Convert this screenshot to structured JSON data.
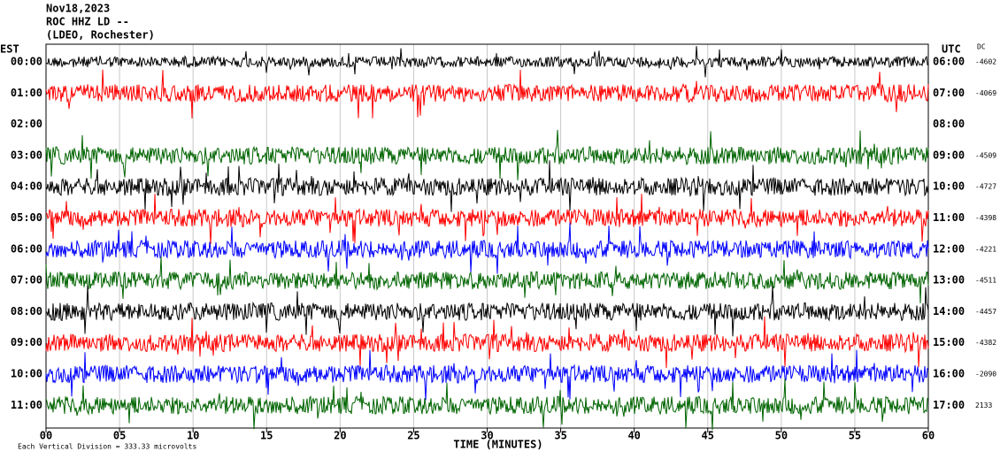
{
  "chart_data": {
    "type": "helicorder",
    "title_lines": [
      "Nov18,2023",
      "ROC HHZ LD --",
      "(LDEO, Rochester)"
    ],
    "left_axis_label": "EST",
    "right_axis_label": "UTC",
    "dc_label": "DC",
    "x_label": "TIME (MINUTES)",
    "footer": "Each Vertical Division = 333.33 microvolts",
    "xlim": [
      0,
      60
    ],
    "xticks": [
      {
        "value": 0,
        "label": "00"
      },
      {
        "value": 5,
        "label": "05"
      },
      {
        "value": 10,
        "label": "10"
      },
      {
        "value": 15,
        "label": "15"
      },
      {
        "value": 20,
        "label": "20"
      },
      {
        "value": 25,
        "label": "25"
      },
      {
        "value": 30,
        "label": "30"
      },
      {
        "value": 35,
        "label": "35"
      },
      {
        "value": 40,
        "label": "40"
      },
      {
        "value": 45,
        "label": "45"
      },
      {
        "value": 50,
        "label": "50"
      },
      {
        "value": 55,
        "label": "55"
      },
      {
        "value": 60,
        "label": "60"
      }
    ],
    "rows": [
      {
        "est": "00:00",
        "utc": "06:00",
        "dc": -4602,
        "color": "#000000"
      },
      {
        "est": "01:00",
        "utc": "07:00",
        "dc": -4069,
        "color": "#ff0000"
      },
      {
        "est": "02:00",
        "utc": "08:00",
        "dc": null,
        "color": "#0000ff"
      },
      {
        "est": "03:00",
        "utc": "09:00",
        "dc": -4509,
        "color": "#006400"
      },
      {
        "est": "04:00",
        "utc": "10:00",
        "dc": -4727,
        "color": "#000000"
      },
      {
        "est": "05:00",
        "utc": "11:00",
        "dc": -4398,
        "color": "#ff0000"
      },
      {
        "est": "06:00",
        "utc": "12:00",
        "dc": -4221,
        "color": "#0000ff"
      },
      {
        "est": "07:00",
        "utc": "13:00",
        "dc": -4511,
        "color": "#006400"
      },
      {
        "est": "08:00",
        "utc": "14:00",
        "dc": -4457,
        "color": "#000000"
      },
      {
        "est": "09:00",
        "utc": "15:00",
        "dc": -4382,
        "color": "#ff0000"
      },
      {
        "est": "10:00",
        "utc": "16:00",
        "dc": -2090,
        "color": "#0000ff"
      },
      {
        "est": "11:00",
        "utc": "17:00",
        "dc": 2133,
        "color": "#006400"
      }
    ]
  }
}
